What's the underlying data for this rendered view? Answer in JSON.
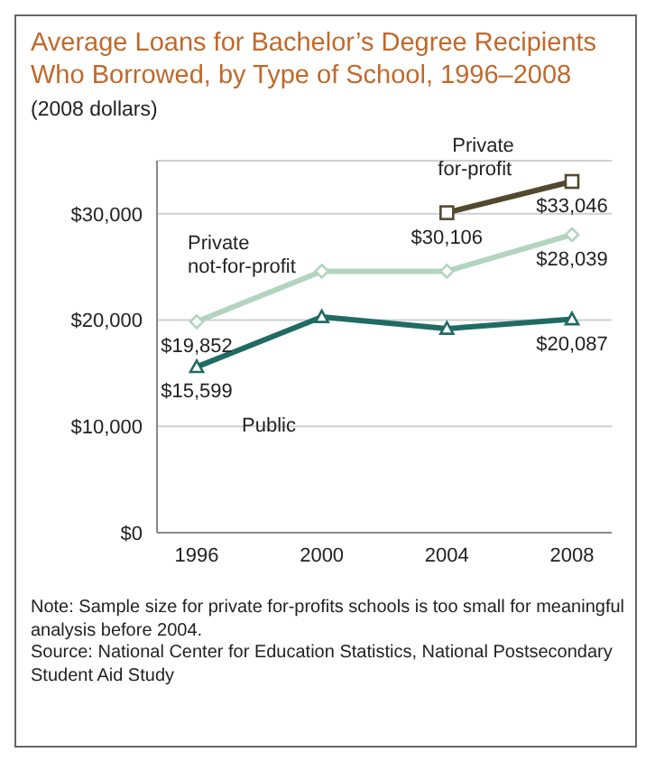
{
  "chart_data": {
    "type": "line",
    "title": "Average Loans for Bachelor’s Degree Recipients Who Borrowed, by Type of School, 1996–2008",
    "subtitle": "(2008 dollars)",
    "categories": [
      "1996",
      "2000",
      "2004",
      "2008"
    ],
    "series": [
      {
        "name": "Private\nfor-profit",
        "color": "#514a2e",
        "marker": "square",
        "values": [
          null,
          null,
          30106,
          33046
        ],
        "value_labels": [
          null,
          null,
          "$30,106",
          "$33,046"
        ]
      },
      {
        "name": "Private\nnot-for-profit",
        "color": "#b3d4bf",
        "marker": "diamond",
        "values": [
          19852,
          24600,
          24600,
          28039
        ],
        "value_labels": [
          "$19,852",
          null,
          null,
          "$28,039"
        ]
      },
      {
        "name": "Public",
        "color": "#1f6b63",
        "marker": "triangle",
        "values": [
          15599,
          20300,
          19200,
          20087
        ],
        "value_labels": [
          "$15,599",
          null,
          null,
          "$20,087"
        ]
      }
    ],
    "ylim": [
      0,
      35000
    ],
    "yticks": [
      {
        "value": 0,
        "label": "$0"
      },
      {
        "value": 10000,
        "label": "$10,000"
      },
      {
        "value": 20000,
        "label": "$20,000"
      },
      {
        "value": 30000,
        "label": "$30,000"
      }
    ],
    "grid": "y",
    "legend": false,
    "line_style": "solid",
    "annotations": [
      "Note: Sample size for private for-profits schools is too small for meaningful analysis before 2004.",
      "Source: National Center for Education Statistics, National Postsecondary Student Aid Study"
    ]
  }
}
